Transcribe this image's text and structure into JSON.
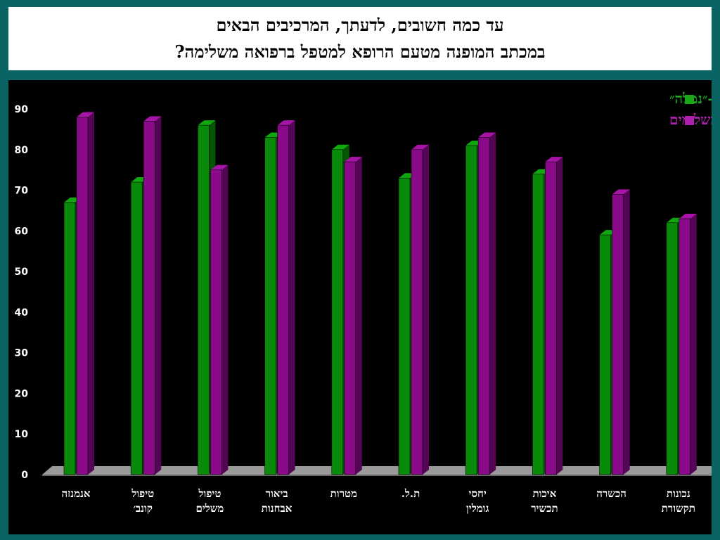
{
  "title": {
    "line1": "עד כמה חשובים, לדעתך, המרכיבים הבאים",
    "line2": "במכתב המופנה מטעם הרופא  למטפל ברפואה משלימה?"
  },
  "chart_data": {
    "type": "bar",
    "categories": [
      [
        "אנמנזה"
      ],
      [
        "טיפול",
        "קונב׳"
      ],
      [
        "טיפול",
        "משלים"
      ],
      [
        "ביאור",
        "אבחנות"
      ],
      [
        "מטרות"
      ],
      [
        "ת.ל."
      ],
      [
        "יחסי",
        "גומלין"
      ],
      [
        "איכות",
        "תכשיר"
      ],
      [
        "הכשרה"
      ],
      [
        "נכונות",
        "תקשורת"
      ]
    ],
    "series": [
      {
        "name": "רופאים-״נמלה״",
        "color": "#0a8a0a",
        "top_color": "#0fa80f",
        "side_color": "#055505",
        "values": [
          67,
          72,
          86,
          83,
          80,
          73,
          81,
          74,
          59,
          62
        ]
      },
      {
        "name": "מטפלים משלימים",
        "color": "#8a0a8a",
        "top_color": "#a814a8",
        "side_color": "#550555",
        "values": [
          88,
          87,
          75,
          86,
          77,
          80,
          83,
          77,
          69,
          63
        ]
      }
    ],
    "yticks": [
      0,
      10,
      20,
      30,
      40,
      50,
      60,
      70,
      80,
      90
    ],
    "ylim": [
      0,
      90
    ],
    "legend": "top-right",
    "legend_colors": [
      "#1aa81a",
      "#b020b0"
    ],
    "grid": false
  }
}
